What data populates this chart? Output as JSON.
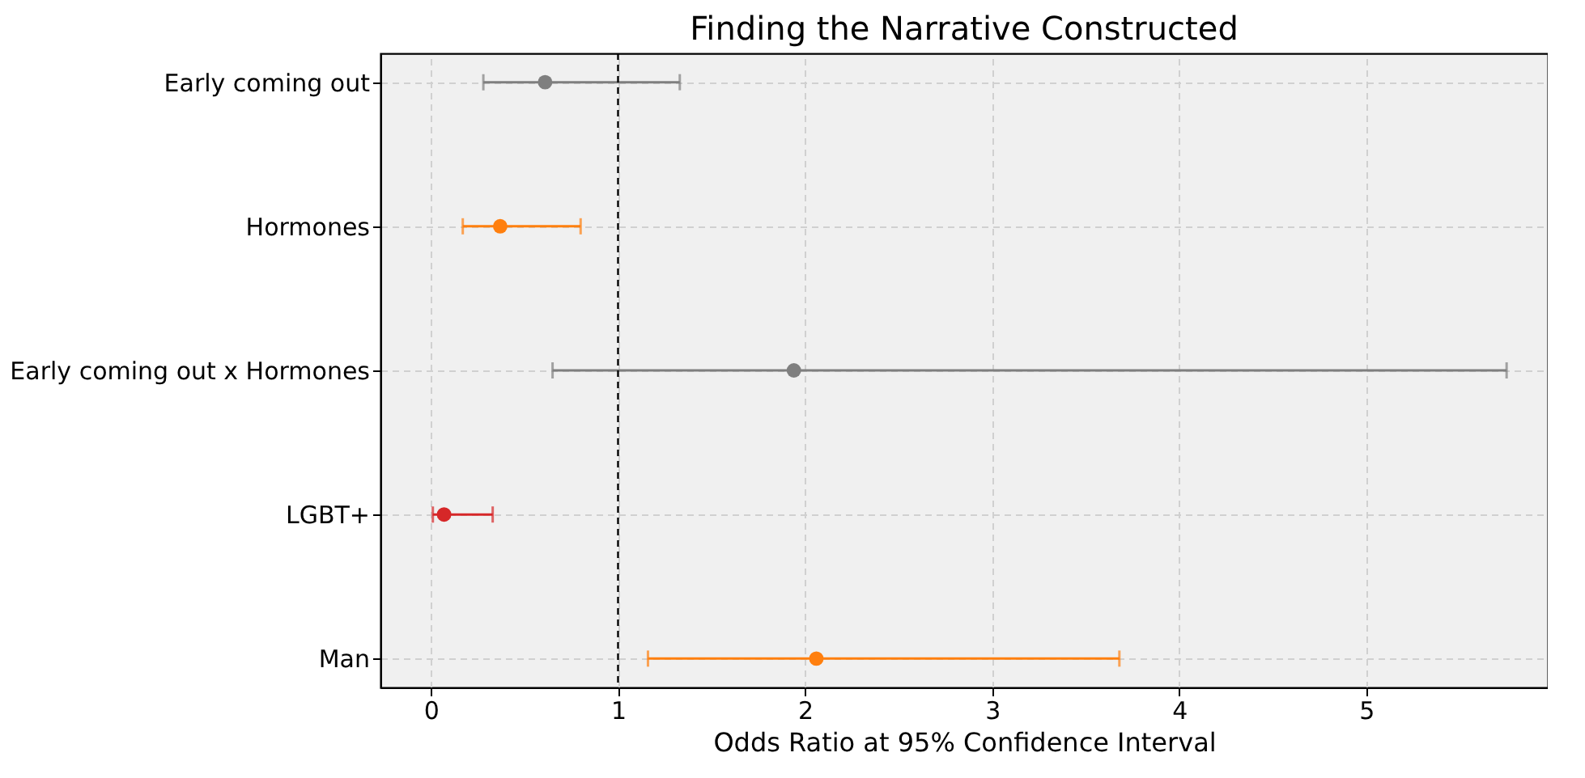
{
  "chart_data": {
    "type": "scatter",
    "title": "Finding the Narrative Constructed",
    "xlabel": "Odds Ratio at 95% Confidence Interval",
    "orientation": "horizontal",
    "categories": [
      "Early coming out",
      "Hormones",
      "Early coming out x Hormones",
      "LGBT+",
      "Man"
    ],
    "values": [
      0.61,
      0.37,
      1.94,
      0.07,
      2.06
    ],
    "errors": [
      [
        0.28,
        1.33
      ],
      [
        0.17,
        0.8
      ],
      [
        0.65,
        5.75
      ],
      [
        0.01,
        0.33
      ],
      [
        1.16,
        3.68
      ]
    ],
    "colors": [
      "#7f7f7f",
      "#ff7f0e",
      "#7f7f7f",
      "#d62728",
      "#ff7f0e"
    ],
    "xlim": [
      -0.27,
      5.97
    ],
    "xticks": [
      {
        "value": 0,
        "label": "0"
      },
      {
        "value": 1,
        "label": "1"
      },
      {
        "value": 2,
        "label": "2"
      },
      {
        "value": 3,
        "label": "3"
      },
      {
        "value": 4,
        "label": "4"
      },
      {
        "value": 5,
        "label": "5"
      }
    ],
    "ref_lines": [
      {
        "axis": "x",
        "value": 1,
        "color": "#000000",
        "line_style": "dashed"
      }
    ],
    "grid": true,
    "marker": "circle"
  }
}
